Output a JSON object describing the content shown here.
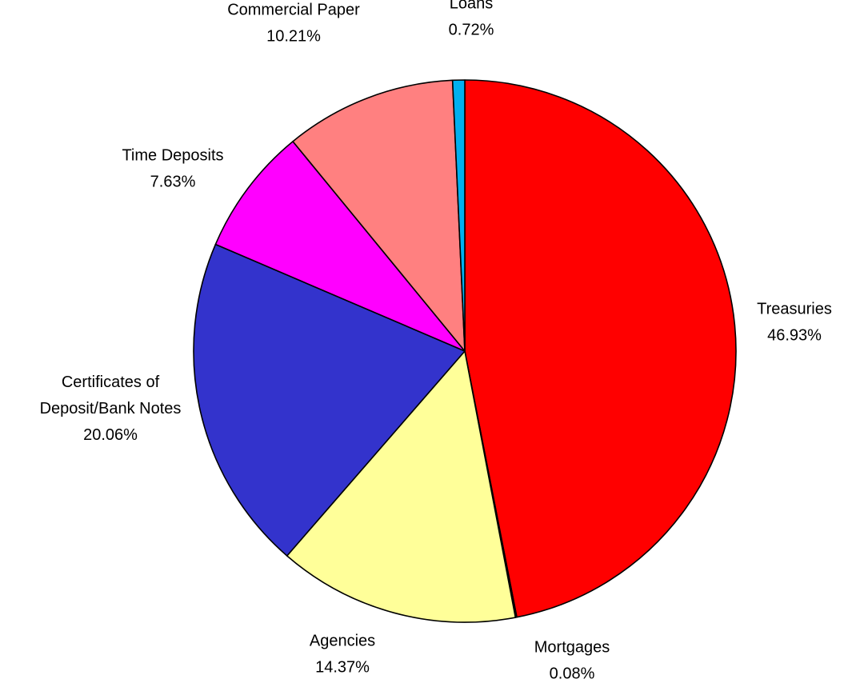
{
  "chart_data": {
    "type": "pie",
    "title": "",
    "start": "12 o'clock",
    "direction": "clockwise",
    "slices": [
      {
        "label": "Treasuries",
        "value": 46.93,
        "value_label": "46.93%",
        "color": "#ff0000"
      },
      {
        "label": "Mortgages",
        "value": 0.08,
        "value_label": "0.08%",
        "color": "#000000"
      },
      {
        "label": "Agencies",
        "value": 14.37,
        "value_label": "14.37%",
        "color": "#ffff99"
      },
      {
        "label": "Certificates of Deposit/Bank Notes",
        "label_lines": [
          "Certificates of",
          "Deposit/Bank Notes"
        ],
        "value": 20.06,
        "value_label": "20.06%",
        "color": "#3333cc"
      },
      {
        "label": "Time Deposits",
        "value": 7.63,
        "value_label": "7.63%",
        "color": "#ff00ff"
      },
      {
        "label": "Commercial Paper",
        "value": 10.21,
        "value_label": "10.21%",
        "color": "#ff8080"
      },
      {
        "label": "Loans",
        "value": 0.72,
        "value_label": "0.72%",
        "color": "#00b0f0"
      }
    ]
  }
}
